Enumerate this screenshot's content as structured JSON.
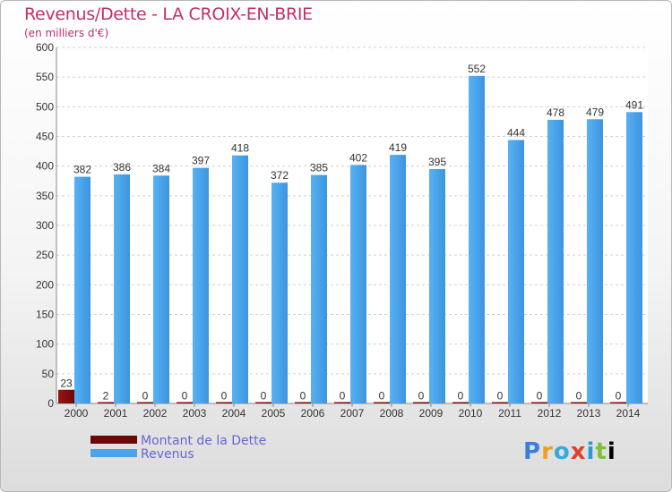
{
  "chart_data": {
    "type": "bar",
    "title": "Revenus/Dette - LA CROIX-EN-BRIE",
    "subtitle": "(en milliers d'€)",
    "categories": [
      "2000",
      "2001",
      "2002",
      "2003",
      "2004",
      "2005",
      "2006",
      "2007",
      "2008",
      "2009",
      "2010",
      "2011",
      "2012",
      "2013",
      "2014"
    ],
    "series": [
      {
        "name": "Montant de la Dette",
        "color": "#7a0c0c",
        "values": [
          23,
          2,
          0,
          0,
          0,
          0,
          0,
          0,
          0,
          0,
          0,
          0,
          0,
          0,
          0
        ]
      },
      {
        "name": "Revenus",
        "color": "#4ca3e8",
        "values": [
          382,
          386,
          384,
          397,
          418,
          372,
          385,
          402,
          419,
          395,
          552,
          444,
          478,
          479,
          491
        ]
      }
    ],
    "ylim": [
      0,
      600
    ],
    "yticks": [
      0,
      50,
      100,
      150,
      200,
      250,
      300,
      350,
      400,
      450,
      500,
      550,
      600
    ],
    "grid": true,
    "legend": "bottom-left"
  },
  "logo": {
    "letters": [
      "P",
      "r",
      "o",
      "x",
      "i",
      "t",
      "i"
    ]
  }
}
